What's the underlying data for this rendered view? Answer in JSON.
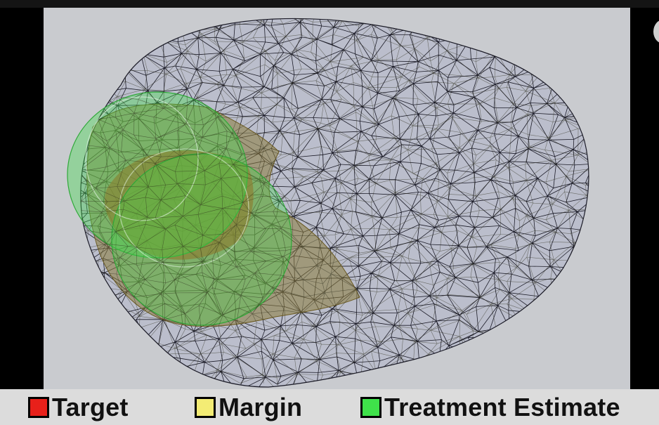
{
  "legend": {
    "items": [
      {
        "label": "Target",
        "color": "#e8201a"
      },
      {
        "label": "Margin",
        "color": "#f3ec74"
      },
      {
        "label": "Treatment Estimate",
        "color": "#3fe24a"
      }
    ]
  },
  "scene": {
    "background": "#c9cbcf",
    "mesh_fill": "#b9bccb",
    "mesh_line": "#1c1c28",
    "margin_fill": "#8a7a3a",
    "target_fill": "#b2522a",
    "treatment_fill": "#3fd94a"
  }
}
